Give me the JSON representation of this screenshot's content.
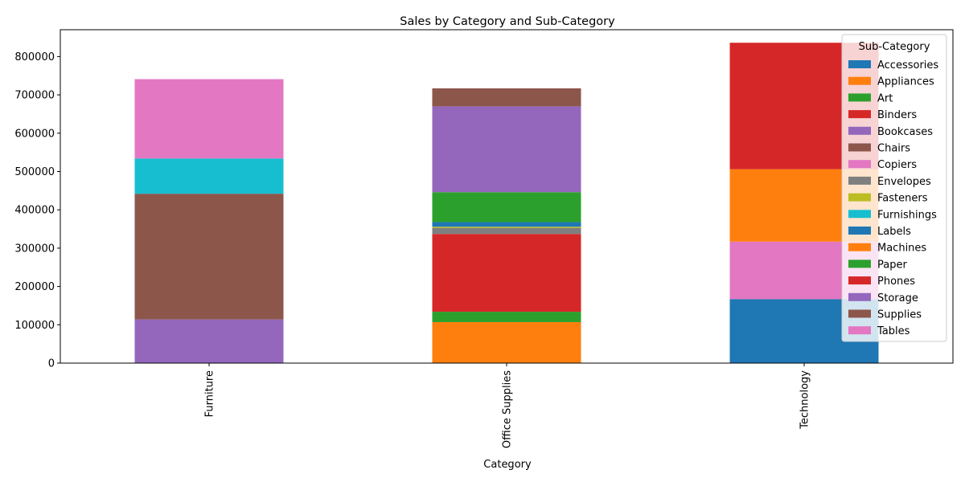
{
  "chart_data": {
    "type": "bar",
    "stacked": true,
    "title": "Sales by Category and Sub-Category",
    "xlabel": "Category",
    "ylabel": "",
    "ylim": [
      0,
      870000
    ],
    "yticks": [
      0,
      100000,
      200000,
      300000,
      400000,
      500000,
      600000,
      700000,
      800000
    ],
    "grid": false,
    "legend_title": "Sub-Category",
    "legend_position": "top-right",
    "categories": [
      "Furniture",
      "Office Supplies",
      "Technology"
    ],
    "series": [
      {
        "name": "Accessories",
        "color": "#1f77b4",
        "values": [
          0,
          0,
          167000
        ]
      },
      {
        "name": "Appliances",
        "color": "#ff7f0e",
        "values": [
          0,
          107000,
          0
        ]
      },
      {
        "name": "Art",
        "color": "#2ca02c",
        "values": [
          0,
          27000,
          0
        ]
      },
      {
        "name": "Binders",
        "color": "#d62728",
        "values": [
          0,
          203000,
          0
        ]
      },
      {
        "name": "Bookcases",
        "color": "#9467bd",
        "values": [
          114000,
          0,
          0
        ]
      },
      {
        "name": "Chairs",
        "color": "#8c564b",
        "values": [
          328000,
          0,
          0
        ]
      },
      {
        "name": "Copiers",
        "color": "#e377c2",
        "values": [
          0,
          0,
          150000
        ]
      },
      {
        "name": "Envelopes",
        "color": "#7f7f7f",
        "values": [
          0,
          16000,
          0
        ]
      },
      {
        "name": "Fasteners",
        "color": "#bcbd22",
        "values": [
          0,
          3000,
          0
        ]
      },
      {
        "name": "Furnishings",
        "color": "#17becf",
        "values": [
          92000,
          0,
          0
        ]
      },
      {
        "name": "Labels",
        "color": "#1f77b4",
        "values": [
          0,
          12000,
          0
        ]
      },
      {
        "name": "Machines",
        "color": "#ff7f0e",
        "values": [
          0,
          0,
          189000
        ]
      },
      {
        "name": "Paper",
        "color": "#2ca02c",
        "values": [
          0,
          78000,
          0
        ]
      },
      {
        "name": "Phones",
        "color": "#d62728",
        "values": [
          0,
          0,
          330000
        ]
      },
      {
        "name": "Storage",
        "color": "#9467bd",
        "values": [
          0,
          224000,
          0
        ]
      },
      {
        "name": "Supplies",
        "color": "#8c564b",
        "values": [
          0,
          47000,
          0
        ]
      },
      {
        "name": "Tables",
        "color": "#e377c2",
        "values": [
          207000,
          0,
          0
        ]
      }
    ]
  }
}
